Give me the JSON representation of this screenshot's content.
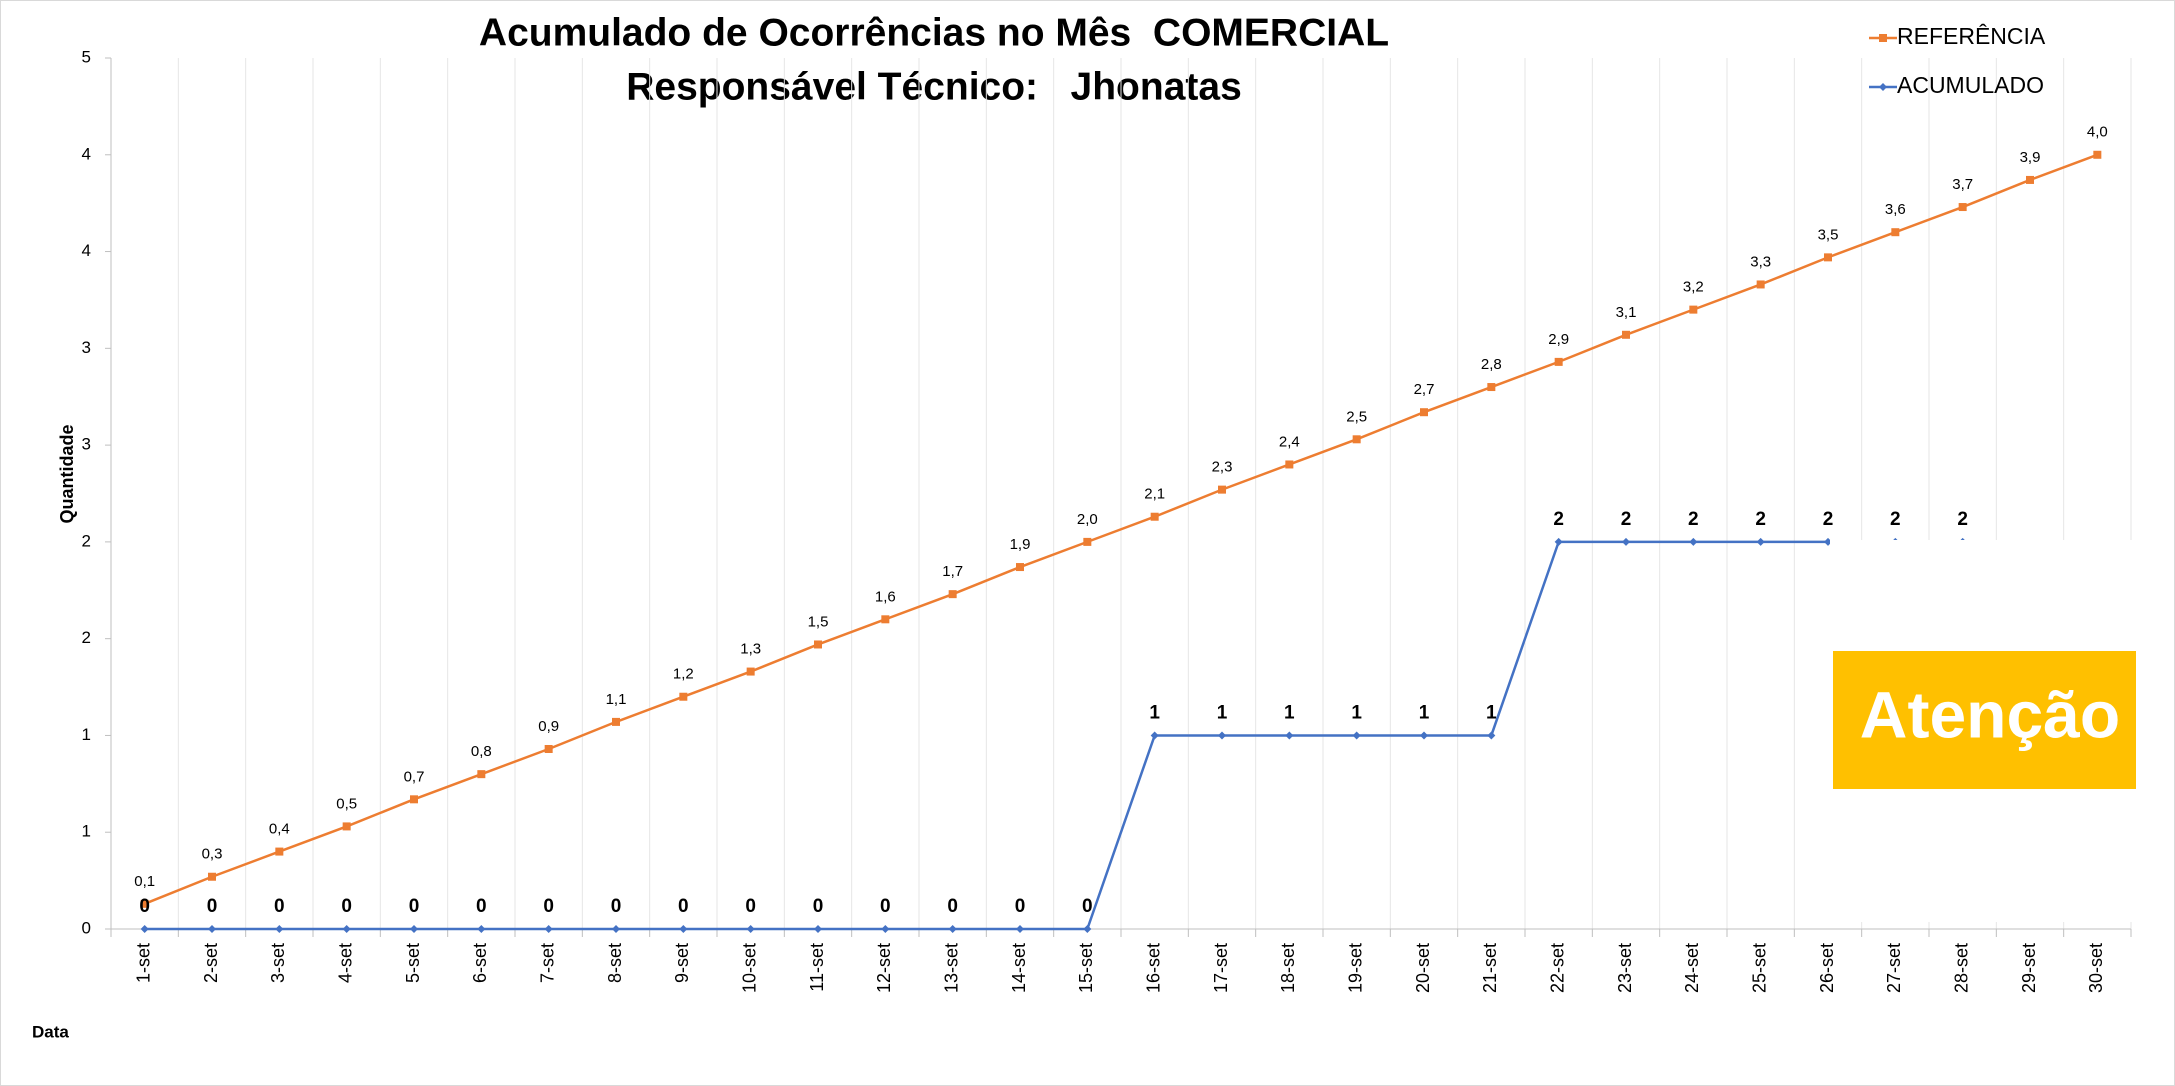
{
  "chart_data": {
    "type": "line",
    "title": [
      "Acumulado de Ocorrências no Mês  COMERCIAL",
      "Responsável Técnico:   Jhonatas"
    ],
    "y_label": "Quantidade",
    "x_label": "Data",
    "categories": [
      "1-set",
      "2-set",
      "3-set",
      "4-set",
      "5-set",
      "6-set",
      "7-set",
      "8-set",
      "9-set",
      "10-set",
      "11-set",
      "12-set",
      "13-set",
      "14-set",
      "15-set",
      "16-set",
      "17-set",
      "18-set",
      "19-set",
      "20-set",
      "21-set",
      "22-set",
      "23-set",
      "24-set",
      "25-set",
      "26-set",
      "27-set",
      "28-set",
      "29-set",
      "30-set"
    ],
    "series": [
      {
        "name": "REFERÊNCIA",
        "color": "#ED7D31",
        "marker": "square",
        "values": [
          0.13,
          0.27,
          0.4,
          0.53,
          0.67,
          0.8,
          0.93,
          1.07,
          1.2,
          1.33,
          1.47,
          1.6,
          1.73,
          1.87,
          2,
          2.13,
          2.27,
          2.4,
          2.53,
          2.67,
          2.8,
          2.93,
          3.07,
          3.2,
          3.33,
          3.47,
          3.6,
          3.73,
          3.87,
          4
        ],
        "value_labels": [
          "0,1",
          "0,3",
          "0,4",
          "0,5",
          "0,7",
          "0,8",
          "0,9",
          "1,1",
          "1,2",
          "1,3",
          "1,5",
          "1,6",
          "1,7",
          "1,9",
          "2,0",
          "2,1",
          "2,3",
          "2,4",
          "2,5",
          "2,7",
          "2,8",
          "2,9",
          "3,1",
          "3,2",
          "3,3",
          "3,5",
          "3,6",
          "3,7",
          "3,9",
          "4,0"
        ]
      },
      {
        "name": "ACUMULADO",
        "color": "#4472C4",
        "marker": "diamond",
        "values": [
          0,
          0,
          0,
          0,
          0,
          0,
          0,
          0,
          0,
          0,
          0,
          0,
          0,
          0,
          0,
          1,
          1,
          1,
          1,
          1,
          1,
          2,
          2,
          2,
          2,
          2,
          2,
          2,
          null,
          null
        ]
      }
    ],
    "ylim": [
      0,
      4.5
    ],
    "yticks": [
      0,
      {
        "value": 0.5,
        "label": "1"
      },
      1,
      {
        "value": 1.5,
        "label": "2"
      },
      2,
      {
        "value": 2.5,
        "label": "3"
      },
      3,
      {
        "value": 3.5,
        "label": "4"
      },
      4,
      {
        "value": 4.5,
        "label": "5"
      }
    ],
    "legend": "upper right",
    "annotation": "Atenção"
  }
}
